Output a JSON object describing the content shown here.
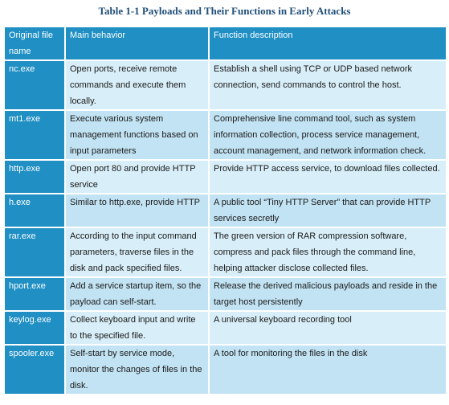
{
  "title": "Table 1-1 Payloads and Their Functions in Early Attacks",
  "headers": {
    "col1": "Original file name",
    "col2": "Main behavior",
    "col3": "Function description"
  },
  "rows": [
    {
      "name": "nc.exe",
      "behavior": "Open ports, receive remote commands and execute them locally.",
      "description": "Establish a shell using TCP or UDP based network connection, send commands to control the host."
    },
    {
      "name": "mt1.exe",
      "behavior": "Execute various system management functions based on input parameters",
      "description": "Comprehensive line command tool, such as system information collection, process service management, account management, and network information check."
    },
    {
      "name": "http.exe",
      "behavior": "Open port 80 and provide HTTP service",
      "description": "Provide HTTP access service, to download files collected."
    },
    {
      "name": "h.exe",
      "behavior": "Similar to http.exe, provide HTTP",
      "description": "A public tool “Tiny HTTP Server” that can provide HTTP services secretly"
    },
    {
      "name": "rar.exe",
      "behavior": "According to the input command parameters, traverse files in the disk and pack specified files.",
      "description": "The green version of RAR compression software, compress and pack files through the command line, helping attacker disclose collected files."
    },
    {
      "name": "hport.exe",
      "behavior": "Add a service startup item, so the payload can self-start.",
      "description": "Release the derived malicious payloads and reside in the target host persistently"
    },
    {
      "name": "keylog.exe",
      "behavior": "Collect keyboard input and write to the specified file.",
      "description": "A universal keyboard recording tool"
    },
    {
      "name": "spooler.exe",
      "behavior": "Self-start by service mode, monitor the changes of files in the disk.",
      "description": "A tool for monitoring the files in the disk"
    }
  ],
  "colors": {
    "header_blue": "#1f8fc4",
    "row_light": "#d8eef8",
    "row_dark": "#c2e3f3",
    "title": "#1f4e79"
  }
}
